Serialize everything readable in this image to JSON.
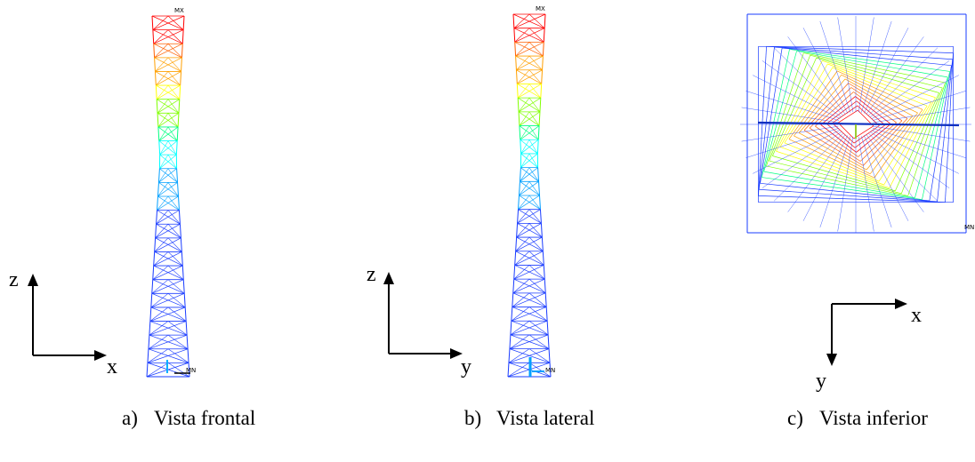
{
  "panels": [
    {
      "id": "a",
      "enum": "a)",
      "caption": "Vista frontal",
      "max_tag": "MX",
      "min_tag": "MN",
      "axis_h": "x",
      "axis_v": "z",
      "axis_mark": "Z"
    },
    {
      "id": "b",
      "enum": "b)",
      "caption": "Vista lateral",
      "max_tag": "MX",
      "min_tag": "MN",
      "axis_h": "y",
      "axis_v": "z",
      "axis_mark": "Z"
    },
    {
      "id": "c",
      "enum": "c)",
      "caption": "Vista inferior",
      "min_tag": "MN",
      "axis_h": "x",
      "axis_v": "y",
      "axis_mark": "Z"
    }
  ],
  "colors": {
    "scale": [
      "#0000ff",
      "#00a0ff",
      "#00ffff",
      "#00ff80",
      "#80ff00",
      "#ffff00",
      "#ffa000",
      "#ff6000",
      "#ff0000"
    ],
    "structure": "#1a3cff"
  }
}
